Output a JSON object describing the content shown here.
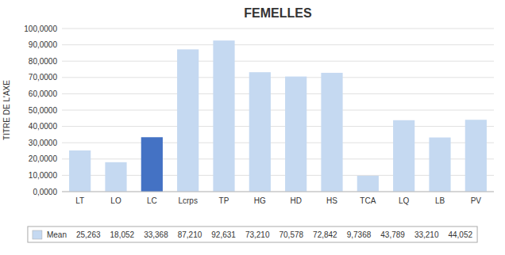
{
  "chart_data": {
    "type": "bar",
    "title": "FEMELLES",
    "y_label": "TITRE DE L'AXE",
    "categories": [
      "LT",
      "LO",
      "LC",
      "Lcrps",
      "TP",
      "HG",
      "HD",
      "HS",
      "TCA",
      "LQ",
      "LB",
      "PV"
    ],
    "series": [
      {
        "name": "Mean",
        "color": "#c5d9f1",
        "colors": [
          "#c5d9f1",
          "#c5d9f1",
          "#4472c4",
          "#c5d9f1",
          "#c5d9f1",
          "#c5d9f1",
          "#c5d9f1",
          "#c5d9f1",
          "#c5d9f1",
          "#c5d9f1",
          "#c5d9f1",
          "#c5d9f1"
        ],
        "values": [
          25.263,
          18.052,
          33.368,
          87.21,
          92.631,
          73.21,
          70.578,
          72.842,
          9.7368,
          43.789,
          33.21,
          44.052
        ],
        "value_labels": [
          "25,263",
          "18,052",
          "33,368",
          "87,210",
          "92,631",
          "73,210",
          "70,578",
          "72,842",
          "9,7368",
          "43,789",
          "33,210",
          "44,052"
        ]
      }
    ],
    "ylim": [
      0,
      100
    ],
    "yticks": [
      {
        "value": 0,
        "label": "0,0000"
      },
      {
        "value": 10,
        "label": "10,0000"
      },
      {
        "value": 20,
        "label": "20,0000"
      },
      {
        "value": 30,
        "label": "30,0000"
      },
      {
        "value": 40,
        "label": "40,0000"
      },
      {
        "value": 50,
        "label": "50,0000"
      },
      {
        "value": 60,
        "label": "60,0000"
      },
      {
        "value": 70,
        "label": "70,0000"
      },
      {
        "value": 80,
        "label": "80,0000"
      },
      {
        "value": 90,
        "label": "90,0000"
      },
      {
        "value": 100,
        "label": "100,0000"
      }
    ],
    "grid": true,
    "legend": "bottom"
  }
}
